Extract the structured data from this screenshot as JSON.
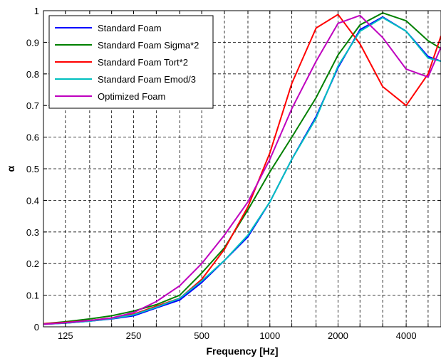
{
  "chart_data": {
    "type": "line",
    "xlabel": "Frequency [Hz]",
    "ylabel": "α",
    "x_scale": "log",
    "xlim": [
      100,
      5700
    ],
    "ylim": [
      0,
      1
    ],
    "grid": true,
    "legend_position": "top-left",
    "x_ticks": [
      125,
      250,
      500,
      1000,
      2000,
      4000
    ],
    "x_tick_labels": [
      "125",
      "250",
      "500",
      "1000",
      "2000",
      "4000"
    ],
    "y_ticks": [
      0,
      0.1,
      0.2,
      0.3,
      0.4,
      0.5,
      0.6,
      0.7,
      0.8,
      0.9,
      1
    ],
    "y_tick_labels": [
      "0",
      "0.1",
      "0.2",
      "0.3",
      "0.4",
      "0.5",
      "0.6",
      "0.7",
      "0.8",
      "0.9",
      "1"
    ],
    "x": [
      100,
      125,
      160,
      200,
      250,
      315,
      400,
      500,
      630,
      800,
      1000,
      1250,
      1600,
      2000,
      2500,
      3150,
      4000,
      5000,
      5700
    ],
    "series": [
      {
        "name": "Standard Foam",
        "color": "#0000ff",
        "values": [
          0.008,
          0.012,
          0.018,
          0.025,
          0.035,
          0.06,
          0.085,
          0.14,
          0.21,
          0.285,
          0.395,
          0.53,
          0.665,
          0.82,
          0.94,
          0.98,
          0.935,
          0.855,
          0.84
        ]
      },
      {
        "name": "Standard Foam Sigma*2",
        "color": "#008000",
        "values": [
          0.01,
          0.016,
          0.025,
          0.035,
          0.05,
          0.07,
          0.1,
          0.17,
          0.25,
          0.37,
          0.49,
          0.6,
          0.725,
          0.86,
          0.955,
          0.993,
          0.968,
          0.905,
          0.88
        ]
      },
      {
        "name": "Standard Foam Tort*2",
        "color": "#ff0000",
        "values": [
          0.01,
          0.014,
          0.02,
          0.028,
          0.04,
          0.065,
          0.09,
          0.15,
          0.245,
          0.38,
          0.55,
          0.77,
          0.945,
          0.988,
          0.895,
          0.76,
          0.7,
          0.8,
          0.92
        ]
      },
      {
        "name": "Standard Foam Emod/3",
        "color": "#00bfbf",
        "values": [
          0.008,
          0.012,
          0.018,
          0.026,
          0.038,
          0.062,
          0.09,
          0.145,
          0.21,
          0.29,
          0.395,
          0.53,
          0.66,
          0.825,
          0.935,
          0.978,
          0.935,
          0.85,
          0.84
        ]
      },
      {
        "name": "Optimized Foam",
        "color": "#bf00bf",
        "values": [
          0.008,
          0.013,
          0.02,
          0.028,
          0.045,
          0.08,
          0.13,
          0.2,
          0.29,
          0.395,
          0.53,
          0.69,
          0.84,
          0.96,
          0.985,
          0.915,
          0.815,
          0.79,
          0.885
        ]
      }
    ]
  }
}
